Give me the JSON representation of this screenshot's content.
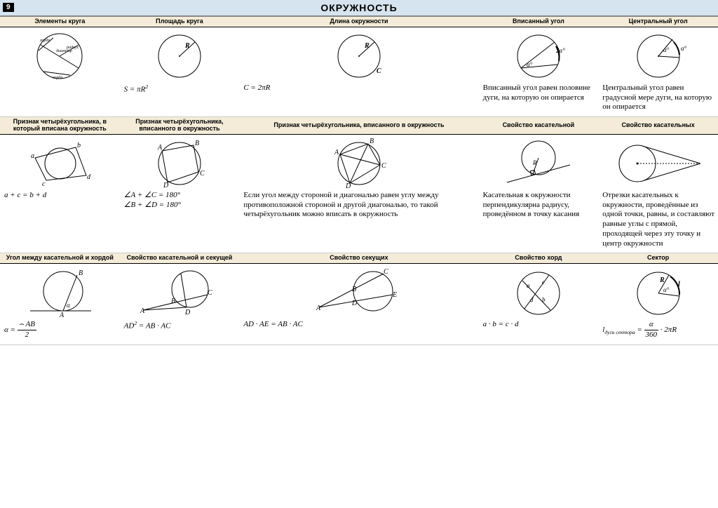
{
  "page_number": "9",
  "main_title": "ОКРУЖНОСТЬ",
  "colors": {
    "header_bg": "#d6e4ef",
    "subhead_bg": "#f4ecd8",
    "stroke": "#000000"
  },
  "row1_headers": [
    "Элементы круга",
    "Площадь круга",
    "Длина окружности",
    "",
    "Вписанный угол",
    "Центральный угол"
  ],
  "row1": {
    "c1": {
      "labels": [
        "хорда",
        "диаметр",
        "радиус",
        "хорда"
      ]
    },
    "c2": {
      "label": "R",
      "formula_html": "<i>S</i> = π<i>R</i><sup>2</sup>"
    },
    "c3": {
      "labels": [
        "R",
        "C"
      ],
      "formula_html": "<i>C</i> = 2π<i>R</i>"
    },
    "c5": {
      "labels": [
        "2α°",
        "α°"
      ],
      "desc": "Вписанный угол равен половине дуги, на которую он опирается"
    },
    "c6": {
      "labels": [
        "α°",
        "α°"
      ],
      "desc": "Центральный угол равен градусной мере дуги, на которую он опирается"
    }
  },
  "row2_headers": [
    "Признак четырёхугольника, в который вписана окружность",
    "Признак четырёхугольника, вписанного в окружность",
    "Признак четырёхугольника, вписанного в окружность",
    "Свойство касательной",
    "Свойство касательных"
  ],
  "row2": {
    "c1": {
      "labels": [
        "a",
        "b",
        "c",
        "d"
      ],
      "formula_html": "<i>a</i> + <i>c</i> = <i>b</i> + <i>d</i>"
    },
    "c2": {
      "labels": [
        "A",
        "B",
        "C",
        "D"
      ],
      "formula_html": "∠<i>A</i> + ∠<i>C</i> = 180°<br>∠<i>B</i> + ∠<i>D</i> = 180°"
    },
    "c3": {
      "labels": [
        "A",
        "B",
        "C",
        "D"
      ],
      "desc": "Если угол между стороной и диагональю равен углу между противоположной стороной и другой диагональю, то такой четырёхугольник можно вписать в окружность"
    },
    "c4": {
      "label": "R",
      "desc": "Касательная к окружности перпендикулярна радиусу, проведённом в точку касания"
    },
    "c5": {
      "desc": "Отрезки касательных к окружности, проведённые из одной точки, равны, и составляют равные углы с прямой, проходящей через эту точку и центр окружности"
    }
  },
  "row3_headers": [
    "Угол между касательной и хордой",
    "Свойство касательной и секущей",
    "Свойство секущих",
    "Свойство хорд",
    "Сектор"
  ],
  "row3": {
    "c1": {
      "labels": [
        "A",
        "B",
        "α"
      ],
      "formula_html": "<i>α</i> = <span class='frac'><span class='n'>⌢ <i>AB</i></span><span class='d'>2</span></span>"
    },
    "c2": {
      "labels": [
        "A",
        "B",
        "C",
        "D"
      ],
      "formula_html": "<i>AD</i><sup>2</sup> = <i>AB</i> · <i>AC</i>"
    },
    "c3": {
      "labels": [
        "A",
        "B",
        "C",
        "D",
        "E"
      ],
      "formula_html": "<i>AD</i> · <i>AE</i> = <i>AB</i> · <i>AC</i>"
    },
    "c4": {
      "labels": [
        "a",
        "b",
        "c",
        "d"
      ],
      "formula_html": "<i>a</i> · <i>b</i> = <i>c</i> · <i>d</i>"
    },
    "c5": {
      "labels": [
        "R",
        "α°",
        "l"
      ],
      "formula_html": "<i>l</i><sub>дуги сектора</sub> = <span class='frac'><span class='n'><i>α</i></span><span class='d'>360</span></span> · 2π<i>R</i>"
    }
  }
}
